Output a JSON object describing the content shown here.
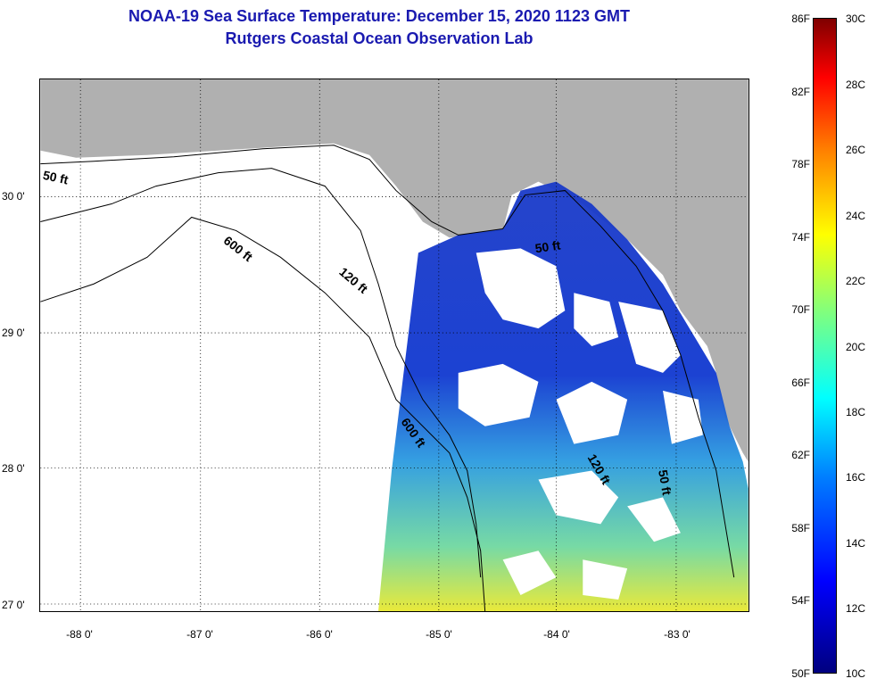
{
  "title": {
    "line1": "NOAA-19 Sea Surface Temperature:  December 15, 2020 1123 GMT",
    "line2": "Rutgers Coastal Ocean Observation Lab"
  },
  "axes": {
    "y_labels": [
      "30 0'",
      "29 0'",
      "28 0'",
      "27 0'"
    ],
    "x_labels": [
      "-88 0'",
      "-87 0'",
      "-86 0'",
      "-85 0'",
      "-84 0'",
      "-83 0'"
    ]
  },
  "contours": [
    "50 ft",
    "600 ft",
    "120 ft",
    "600 ft",
    "50 ft",
    "120 ft",
    "50 ft"
  ],
  "colorbar": {
    "fahrenheit": [
      "86F",
      "82F",
      "78F",
      "74F",
      "70F",
      "66F",
      "62F",
      "58F",
      "54F",
      "50F"
    ],
    "celsius": [
      "30C",
      "28C",
      "26C",
      "24C",
      "22C",
      "20C",
      "18C",
      "16C",
      "14C",
      "12C",
      "10C"
    ]
  },
  "colors": {
    "title": "#1a1ab0",
    "land": "#b0b0b0",
    "cloud": "#ffffff"
  }
}
